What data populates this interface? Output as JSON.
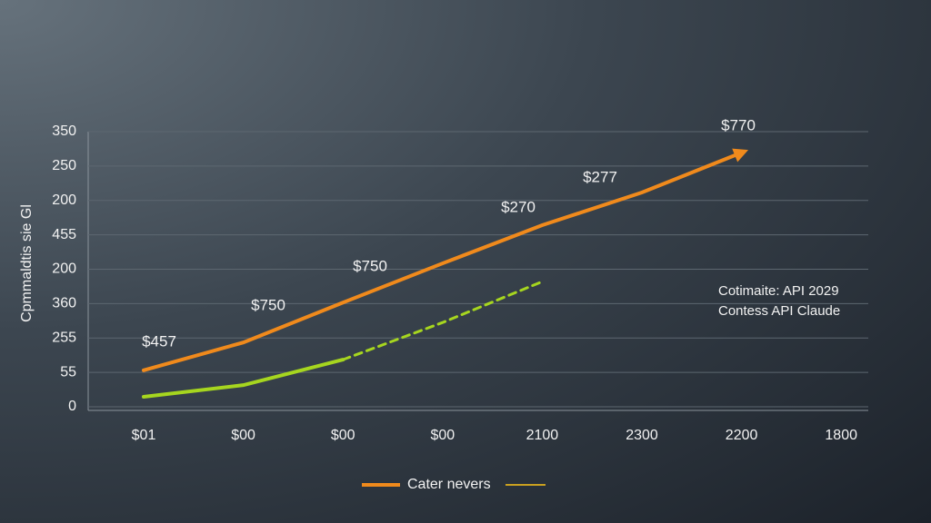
{
  "chart_data": {
    "type": "line",
    "y_label": "Cpmmaldtis sie Gl",
    "categories": [
      "$01",
      "$00",
      "$00",
      "$00",
      "2100",
      "2300",
      "2200",
      "1800"
    ],
    "ylim": [
      0,
      8
    ],
    "yticks": [
      {
        "value": 0,
        "label": "0"
      },
      {
        "value": 1,
        "label": "55"
      },
      {
        "value": 2,
        "label": "255"
      },
      {
        "value": 3,
        "label": "360"
      },
      {
        "value": 4,
        "label": "200"
      },
      {
        "value": 5,
        "label": "455"
      },
      {
        "value": 6,
        "label": "200"
      },
      {
        "value": 7,
        "label": "250"
      },
      {
        "value": 8,
        "label": "350"
      }
    ],
    "grid": true,
    "series": [
      {
        "name": "Cater nevers",
        "color": "#f08a1c",
        "style": "solid",
        "arrow": true,
        "values": [
          1.06,
          1.87,
          3.03,
          4.17,
          5.28,
          6.23,
          7.39,
          null
        ]
      },
      {
        "color": "#a6d61f",
        "style": "solid",
        "values": [
          0.29,
          0.63,
          1.37,
          null,
          null,
          null,
          null,
          null
        ]
      },
      {
        "color": "#a6d61f",
        "style": "dashed",
        "values": [
          null,
          null,
          1.37,
          2.45,
          3.64,
          null,
          null,
          null
        ]
      }
    ],
    "annotations": [
      "$457",
      "$750",
      "$750",
      "$270",
      "$277",
      "$770"
    ],
    "note_lines": [
      "Cotimaite: API 2029",
      "Contess API Claude"
    ]
  }
}
